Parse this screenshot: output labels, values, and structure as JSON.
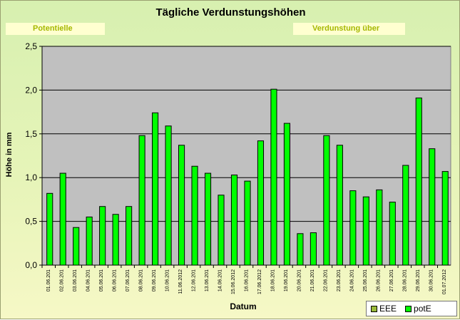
{
  "chart_data": {
    "type": "bar",
    "title": "Tägliche Verdunstungshöhen",
    "annotations": [
      "Potentielle",
      "Verdunstung über"
    ],
    "xlabel": "Datum",
    "ylabel": "Höhe in mm",
    "ylim": [
      0,
      2.5
    ],
    "yticks": [
      "0,0",
      "0,5",
      "1,0",
      "1,5",
      "2,0",
      "2,5"
    ],
    "grid": true,
    "legend_position": "bottom-right",
    "categories": [
      "01.06.201",
      "02.06.201",
      "03.06.201",
      "04.06.201",
      "05.06.201",
      "06.06.201",
      "07.06.201",
      "08.06.201",
      "09.06.201",
      "10.06.201",
      "11.06.2012",
      "12.06.201",
      "13.06.201",
      "14.06.201",
      "15.06.2012",
      "16.06.201",
      "17.06.2012",
      "18.06.201",
      "19.06.201",
      "20.06.201",
      "21.06.201",
      "22.06.201",
      "23.06.201",
      "24.06.201",
      "25.06.201",
      "26.06.201",
      "27.06.201",
      "28.06.201",
      "29.06.201",
      "30.06.201",
      "01.07.2012"
    ],
    "series": [
      {
        "name": "EEE",
        "color": "#9bbb3a",
        "values": [
          0,
          0,
          0,
          0,
          0,
          0,
          0,
          0,
          0,
          0,
          0,
          0,
          0,
          0,
          0,
          0,
          0,
          0,
          0,
          0,
          0,
          0,
          0,
          0,
          0,
          0,
          0,
          0,
          0,
          0,
          0
        ]
      },
      {
        "name": "potE",
        "color": "#00ff00",
        "values": [
          0.82,
          1.05,
          0.43,
          0.55,
          0.67,
          0.58,
          0.67,
          1.48,
          1.74,
          1.59,
          1.37,
          1.13,
          1.05,
          0.8,
          1.03,
          0.96,
          1.42,
          2.01,
          1.62,
          0.36,
          0.37,
          1.48,
          1.37,
          0.85,
          0.78,
          0.86,
          0.72,
          1.14,
          1.91,
          1.33,
          1.07
        ]
      }
    ]
  }
}
